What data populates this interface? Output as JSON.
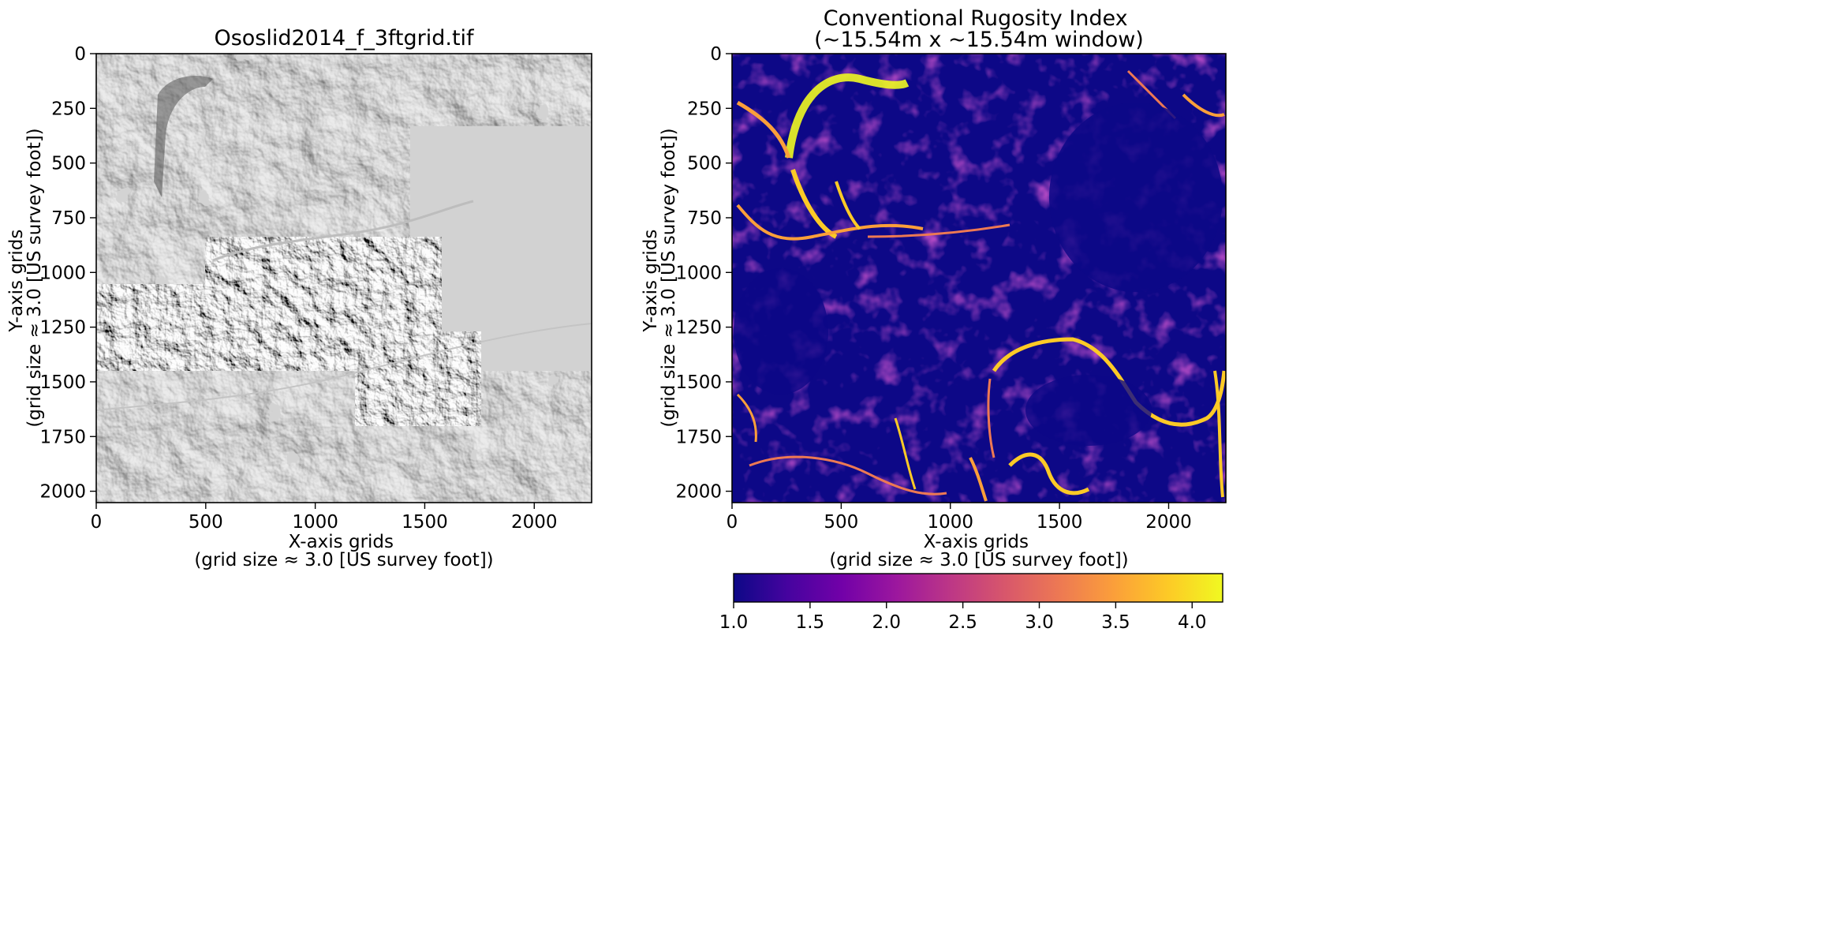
{
  "chart_data": [
    {
      "type": "heatmap",
      "title": "Ososlid2014_f_3ftgrid.tif",
      "xlabel": "X-axis grids\n(grid size ≈ 3.0 [US survey foot])",
      "ylabel": "Y-axis grids\n(grid size ≈ 3.0 [US survey foot])",
      "xlim": [
        0,
        2262
      ],
      "ylim": [
        2052,
        0
      ],
      "xticks": [
        0,
        500,
        1000,
        1500,
        2000
      ],
      "yticks": [
        0,
        250,
        500,
        750,
        1000,
        1250,
        1500,
        1750,
        2000
      ],
      "colormap": "gray",
      "image_kind": "hillshade",
      "colors": {
        "background": "#d2d2d2",
        "light": "#f2f2f2",
        "shadow": "#444444"
      }
    },
    {
      "type": "heatmap",
      "title": "Conventional Rugosity Index\n(~15.54m x ~15.54m window)",
      "xlabel": "X-axis grids\n(grid size ≈ 3.0 [US survey foot])",
      "ylabel": "Y-axis grids\n(grid size ≈ 3.0 [US survey foot])",
      "xlim": [
        0,
        2262
      ],
      "ylim": [
        2052,
        0
      ],
      "xticks": [
        0,
        500,
        1000,
        1500,
        2000
      ],
      "yticks": [
        0,
        250,
        500,
        750,
        1000,
        1250,
        1500,
        1750,
        2000
      ],
      "colormap": "plasma",
      "colorbar": {
        "orientation": "horizontal",
        "range": [
          1.0,
          4.2
        ],
        "ticks": [
          "1.0",
          "1.5",
          "2.0",
          "2.5",
          "3.0",
          "3.5",
          "4.0"
        ],
        "tick_values": [
          1.0,
          1.5,
          2.0,
          2.5,
          3.0,
          3.5,
          4.0
        ]
      },
      "colors": [
        "#0d0887",
        "#46039f",
        "#7201a8",
        "#9c179e",
        "#bd3786",
        "#d8576b",
        "#ed7953",
        "#fb9f3a",
        "#fdca26",
        "#f0f921"
      ]
    }
  ]
}
